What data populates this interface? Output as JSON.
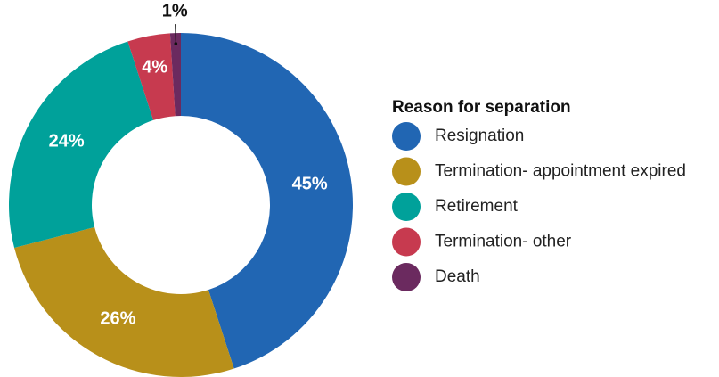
{
  "chart_data": {
    "type": "pie",
    "legend_title": "Reason for separation",
    "categories": [
      "Resignation",
      "Termination- appointment expired",
      "Retirement",
      "Termination- other",
      "Death"
    ],
    "values": [
      45,
      26,
      24,
      4,
      1
    ],
    "value_labels": [
      "45%",
      "26%",
      "24%",
      "4%",
      "1%"
    ],
    "colors": [
      "#2166b3",
      "#b8901a",
      "#00a19a",
      "#c73a4f",
      "#6b2a5f"
    ],
    "donut": true,
    "legend": "right"
  }
}
